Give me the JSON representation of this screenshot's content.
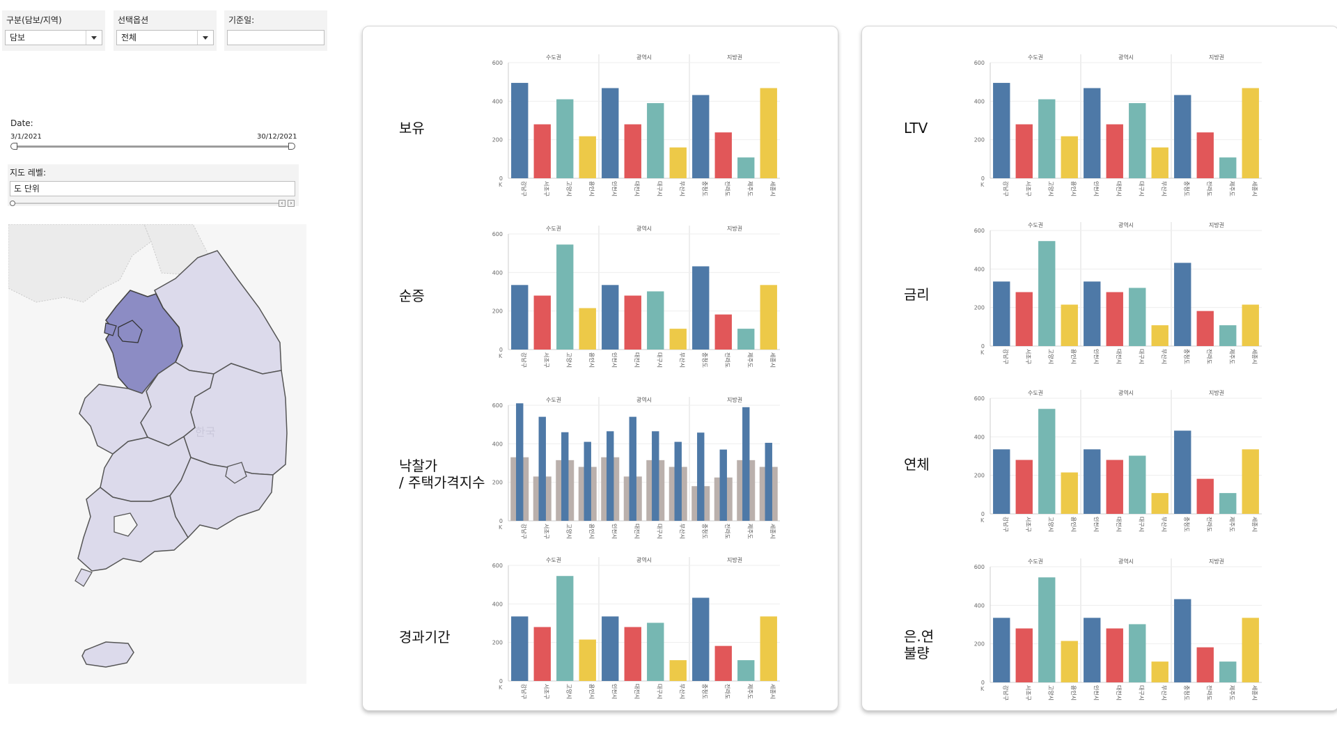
{
  "filters": {
    "category": {
      "label": "구분(담보/지역)",
      "value": "담보"
    },
    "option": {
      "label": "선택옵션",
      "value": "전체"
    },
    "base_date": {
      "label": "기준일:",
      "value": ""
    }
  },
  "date_filter": {
    "label": "Date:",
    "start": "3/1/2021",
    "end": "30/12/2021"
  },
  "map_level": {
    "label": "지도 레벨:",
    "value": "도 단위",
    "slider_position": 0
  },
  "map": {
    "watermark_label": "한국",
    "highlight_color": "#8c8cc4",
    "region_color": "#dcdaeb"
  },
  "colors": {
    "blue": "#4e79a7",
    "red": "#e15759",
    "teal": "#76b7b2",
    "yellow": "#edc948",
    "gray": "#bab0ac"
  },
  "chart_common": {
    "y_ticks": [
      "0",
      "200",
      "400",
      "600"
    ],
    "corner_label": "K",
    "groups": [
      "수도권",
      "광역시",
      "지방권"
    ],
    "categories": [
      "강남구",
      "서초구",
      "고양시",
      "용인시",
      "인천시",
      "대전시",
      "대구시",
      "부산시",
      "충청도",
      "전라도",
      "제주도",
      "세종시"
    ],
    "bar_colors": [
      "blue",
      "red",
      "teal",
      "yellow",
      "blue",
      "red",
      "teal",
      "yellow",
      "blue",
      "red",
      "teal",
      "yellow"
    ]
  },
  "chart_data": [
    {
      "type": "bar",
      "title": "보유",
      "ylim": [
        0,
        600
      ],
      "groups": [
        "수도권",
        "광역시",
        "지방권"
      ],
      "categories": [
        "강남구",
        "서초구",
        "고양시",
        "용인시",
        "인천시",
        "대전시",
        "대구시",
        "부산시",
        "충청도",
        "전라도",
        "제주도",
        "세종시"
      ],
      "values": [
        495,
        280,
        410,
        218,
        468,
        280,
        390,
        160,
        432,
        238,
        108,
        468
      ]
    },
    {
      "type": "bar",
      "title": "순증",
      "ylim": [
        0,
        600
      ],
      "groups": [
        "수도권",
        "광역시",
        "지방권"
      ],
      "categories": [
        "강남구",
        "서초구",
        "고양시",
        "용인시",
        "인천시",
        "대전시",
        "대구시",
        "부산시",
        "충청도",
        "전라도",
        "제주도",
        "세종시"
      ],
      "values": [
        335,
        280,
        545,
        215,
        335,
        280,
        302,
        108,
        432,
        182,
        108,
        335
      ]
    },
    {
      "type": "bar",
      "title": "낙찰가\n/ 주택가격지수",
      "ylim": [
        0,
        600
      ],
      "groups": [
        "수도권",
        "광역시",
        "지방권"
      ],
      "categories": [
        "강남구",
        "서초구",
        "고양시",
        "용인시",
        "인천시",
        "대전시",
        "대구시",
        "부산시",
        "충청도",
        "전라도",
        "제주도",
        "세종시"
      ],
      "series": [
        {
          "values": [
            330,
            230,
            315,
            280,
            330,
            230,
            315,
            280,
            180,
            225,
            315,
            280
          ]
        },
        {
          "values": [
            610,
            540,
            460,
            410,
            465,
            540,
            465,
            410,
            458,
            370,
            590,
            405
          ]
        }
      ]
    },
    {
      "type": "bar",
      "title": "경과기간",
      "ylim": [
        0,
        600
      ],
      "groups": [
        "수도권",
        "광역시",
        "지방권"
      ],
      "categories": [
        "강남구",
        "서초구",
        "고양시",
        "용인시",
        "인천시",
        "대전시",
        "대구시",
        "부산시",
        "충청도",
        "전라도",
        "제주도",
        "세종시"
      ],
      "values": [
        335,
        280,
        545,
        215,
        335,
        280,
        302,
        108,
        432,
        182,
        108,
        335
      ]
    },
    {
      "type": "bar",
      "title": "LTV",
      "ylim": [
        0,
        600
      ],
      "groups": [
        "수도권",
        "광역시",
        "지방권"
      ],
      "categories": [
        "강남구",
        "서초구",
        "고양시",
        "용인시",
        "인천시",
        "대전시",
        "대구시",
        "부산시",
        "충청도",
        "전라도",
        "제주도",
        "세종시"
      ],
      "values": [
        495,
        280,
        410,
        218,
        468,
        280,
        390,
        160,
        432,
        238,
        108,
        468
      ]
    },
    {
      "type": "bar",
      "title": "금리",
      "ylim": [
        0,
        600
      ],
      "groups": [
        "수도권",
        "광역시",
        "지방권"
      ],
      "categories": [
        "강남구",
        "서초구",
        "고양시",
        "용인시",
        "인천시",
        "대전시",
        "대구시",
        "부산시",
        "충청도",
        "전라도",
        "제주도",
        "세종시"
      ],
      "values": [
        335,
        280,
        545,
        215,
        335,
        280,
        302,
        108,
        432,
        182,
        108,
        215
      ]
    },
    {
      "type": "bar",
      "title": "연체",
      "ylim": [
        0,
        600
      ],
      "groups": [
        "수도권",
        "광역시",
        "지방권"
      ],
      "categories": [
        "강남구",
        "서초구",
        "고양시",
        "용인시",
        "인천시",
        "대전시",
        "대구시",
        "부산시",
        "충청도",
        "전라도",
        "제주도",
        "세종시"
      ],
      "values": [
        335,
        280,
        545,
        215,
        335,
        280,
        302,
        108,
        432,
        182,
        108,
        335
      ]
    },
    {
      "type": "bar",
      "title": "은.연\n불량",
      "ylim": [
        0,
        600
      ],
      "groups": [
        "수도권",
        "광역시",
        "지방권"
      ],
      "categories": [
        "강남구",
        "서초구",
        "고양시",
        "용인시",
        "인천시",
        "대전시",
        "대구시",
        "부산시",
        "충청도",
        "전라도",
        "제주도",
        "세종시"
      ],
      "values": [
        335,
        280,
        545,
        215,
        335,
        280,
        302,
        108,
        432,
        182,
        108,
        335
      ]
    }
  ]
}
